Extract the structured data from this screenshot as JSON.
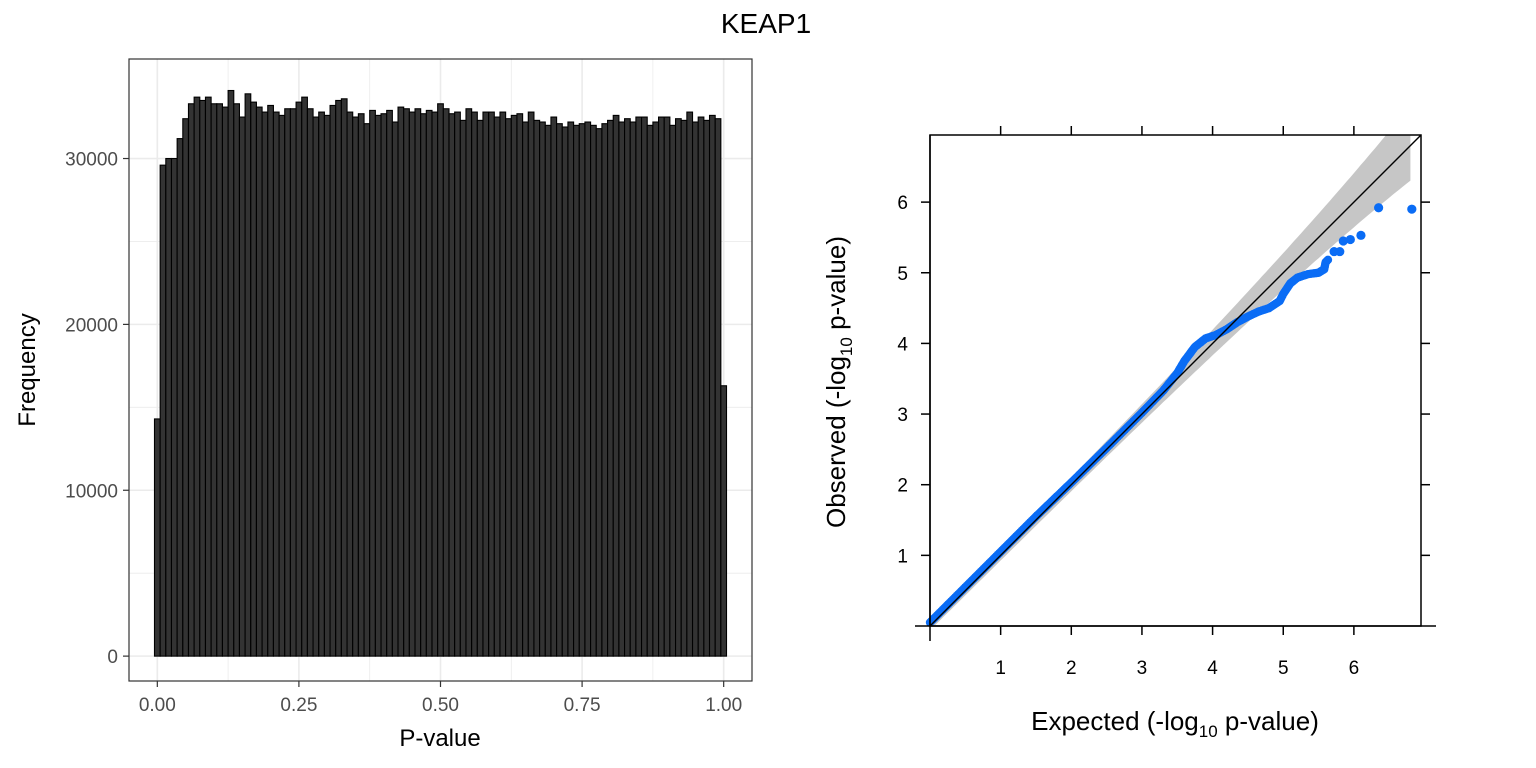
{
  "figure": {
    "title": "KEAP1"
  },
  "colors": {
    "bar_fill": "#333333",
    "bar_outline": "#000000",
    "point": "#0a6cf5",
    "band": "#c6c6c6",
    "grid": "#ebebeb"
  },
  "chart_data": [
    {
      "type": "bar",
      "subtype": "histogram",
      "xlabel": "P-value",
      "ylabel": "Frequency",
      "xlim": [
        -0.05,
        1.05
      ],
      "ylim": [
        -1500,
        36000
      ],
      "x_ticks": [
        0.0,
        0.25,
        0.5,
        0.75,
        1.0
      ],
      "x_tick_labels": [
        "0.00",
        "0.25",
        "0.50",
        "0.75",
        "1.00"
      ],
      "y_ticks": [
        0,
        10000,
        20000,
        30000
      ],
      "y_tick_labels": [
        "0",
        "10000",
        "20000",
        "30000"
      ],
      "grid": true,
      "bin_width": 0.01,
      "first_bin_center": 0.0,
      "values": [
        14300,
        29600,
        30000,
        30000,
        31200,
        32400,
        33300,
        33700,
        33500,
        33700,
        33300,
        33300,
        33100,
        34100,
        33300,
        32500,
        33900,
        33400,
        33100,
        32800,
        33200,
        32800,
        32600,
        33000,
        33000,
        33400,
        33700,
        33000,
        32500,
        32800,
        32600,
        33200,
        33500,
        33600,
        32800,
        32500,
        32700,
        32100,
        32900,
        32600,
        32700,
        32900,
        32200,
        33100,
        33000,
        32800,
        33000,
        32700,
        32900,
        32800,
        33300,
        33000,
        32700,
        32800,
        32300,
        33000,
        32800,
        32300,
        32800,
        32800,
        32500,
        32800,
        32400,
        32600,
        32700,
        32200,
        32800,
        32300,
        32200,
        32000,
        32500,
        32100,
        31900,
        32200,
        32000,
        32100,
        32200,
        32000,
        31800,
        32100,
        32300,
        32600,
        32200,
        32400,
        32200,
        32500,
        32500,
        32000,
        32200,
        32500,
        32500,
        32000,
        32400,
        32300,
        32800,
        32200,
        32500,
        32300,
        32600,
        32400,
        16300
      ]
    },
    {
      "type": "scatter",
      "subtype": "qq-plot",
      "xlabel_prefix": "Expected (-log",
      "xlabel_sub": "10",
      "xlabel_suffix": " p-value)",
      "ylabel_prefix": "Observed (-log",
      "ylabel_sub": "10",
      "ylabel_suffix": " p-value)",
      "xlim": [
        0,
        6.95
      ],
      "ylim": [
        0,
        6.95
      ],
      "x_ticks": [
        1,
        2,
        3,
        4,
        5,
        6
      ],
      "y_ticks": [
        1,
        2,
        3,
        4,
        5,
        6
      ],
      "grid": false,
      "reference_line": true,
      "confidence_band": true,
      "bulk_line": [
        [
          0,
          0.05
        ],
        [
          0.5,
          0.55
        ],
        [
          1,
          1.05
        ],
        [
          1.5,
          1.55
        ],
        [
          2,
          2.03
        ],
        [
          2.5,
          2.52
        ],
        [
          3,
          3.02
        ],
        [
          3.3,
          3.33
        ],
        [
          3.5,
          3.58
        ],
        [
          3.6,
          3.75
        ],
        [
          3.75,
          3.95
        ],
        [
          3.9,
          4.07
        ],
        [
          4.05,
          4.12
        ],
        [
          4.2,
          4.2
        ],
        [
          4.35,
          4.3
        ],
        [
          4.5,
          4.38
        ],
        [
          4.65,
          4.45
        ],
        [
          4.8,
          4.5
        ],
        [
          4.95,
          4.6
        ],
        [
          5.0,
          4.7
        ],
        [
          5.1,
          4.85
        ],
        [
          5.2,
          4.93
        ],
        [
          5.35,
          4.98
        ],
        [
          5.5,
          5.0
        ],
        [
          5.58,
          5.05
        ],
        [
          5.6,
          5.15
        ],
        [
          5.65,
          5.2
        ]
      ],
      "points": [
        [
          5.72,
          5.3
        ],
        [
          5.8,
          5.3
        ],
        [
          5.85,
          5.45
        ],
        [
          5.95,
          5.47
        ],
        [
          6.1,
          5.53
        ],
        [
          6.35,
          5.92
        ],
        [
          6.82,
          5.9
        ]
      ]
    }
  ]
}
